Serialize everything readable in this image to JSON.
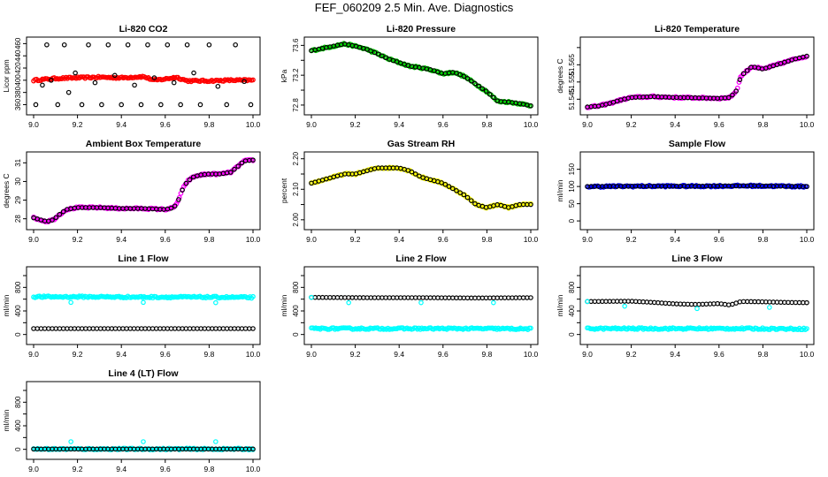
{
  "page": {
    "title": "FEF_060209  2.5 Min. Ave. Diagnostics"
  },
  "colors": {
    "black": "#000000",
    "red": "#ff0000",
    "green": "#00cc00",
    "magenta": "#ff00ff",
    "yellow": "#ffff00",
    "blue": "#0000ff",
    "cyan": "#00ffff"
  },
  "chart_data": [
    {
      "type": "scatter",
      "title": "Li-820 CO2",
      "ylabel": "Licor ppm",
      "xlabel": "",
      "xlim": [
        9.0,
        10.0
      ],
      "ylim": [
        352,
        462
      ],
      "xticks": [
        "9.0",
        "9.2",
        "9.4",
        "9.6",
        "9.8",
        "10.0"
      ],
      "yticks": [
        360,
        380,
        400,
        420,
        440,
        460
      ],
      "series": [
        {
          "name": "red",
          "color": "#ff0000",
          "marker": "dense",
          "x": [
            9.0,
            9.1,
            9.2,
            9.3,
            9.4,
            9.5,
            9.55,
            9.6,
            9.65,
            9.7,
            9.8,
            9.9,
            10.0
          ],
          "values": [
            400,
            403,
            404,
            405,
            404,
            406,
            400,
            402,
            405,
            399,
            399,
            400,
            400
          ]
        },
        {
          "name": "black",
          "color": "#000000",
          "marker": "sparse",
          "x": [
            9.01,
            9.04,
            9.06,
            9.08,
            9.11,
            9.14,
            9.16,
            9.19,
            9.22,
            9.25,
            9.28,
            9.31,
            9.34,
            9.37,
            9.4,
            9.43,
            9.46,
            9.49,
            9.52,
            9.55,
            9.58,
            9.61,
            9.64,
            9.67,
            9.7,
            9.73,
            9.76,
            9.8,
            9.84,
            9.88,
            9.92,
            9.96,
            9.99
          ],
          "values": [
            360,
            392,
            458,
            400,
            360,
            458,
            380,
            412,
            360,
            458,
            396,
            360,
            458,
            408,
            360,
            458,
            392,
            360,
            458,
            404,
            360,
            458,
            396,
            360,
            458,
            412,
            360,
            458,
            390,
            360,
            458,
            398,
            360
          ]
        }
      ]
    },
    {
      "type": "scatter",
      "title": "Li-820 Pressure",
      "ylabel": "kPa",
      "xlabel": "",
      "xlim": [
        9.0,
        10.0
      ],
      "ylim": [
        72.74,
        73.64
      ],
      "xticks": [
        "9.0",
        "9.2",
        "9.4",
        "9.6",
        "9.8",
        "10.0"
      ],
      "yticks": [
        72.8,
        73.0,
        73.2,
        73.4,
        73.6
      ],
      "yticklabels": [
        "72.8",
        "",
        "73.2",
        "",
        "73.6"
      ],
      "series": [
        {
          "name": "green",
          "color": "#00cc00",
          "marker": "dense",
          "x": [
            9.0,
            9.05,
            9.1,
            9.15,
            9.2,
            9.25,
            9.3,
            9.35,
            9.4,
            9.45,
            9.5,
            9.55,
            9.6,
            9.65,
            9.7,
            9.75,
            9.8,
            9.85,
            9.9,
            9.95,
            10.0
          ],
          "values": [
            73.53,
            73.56,
            73.59,
            73.62,
            73.59,
            73.55,
            73.49,
            73.42,
            73.37,
            73.32,
            73.3,
            73.27,
            73.22,
            73.24,
            73.18,
            73.08,
            72.98,
            72.85,
            72.84,
            72.82,
            72.79
          ]
        },
        {
          "name": "black",
          "color": "#000000",
          "marker": "sparse",
          "x": [
            9.0,
            9.05,
            9.1,
            9.15,
            9.2,
            9.25,
            9.3,
            9.35,
            9.4,
            9.45,
            9.5,
            9.55,
            9.6,
            9.65,
            9.7,
            9.75,
            9.8,
            9.85,
            9.9,
            9.95,
            10.0
          ],
          "values": [
            73.53,
            73.56,
            73.59,
            73.62,
            73.59,
            73.55,
            73.49,
            73.42,
            73.37,
            73.32,
            73.3,
            73.27,
            73.22,
            73.24,
            73.18,
            73.08,
            72.98,
            72.85,
            72.84,
            72.82,
            72.79
          ]
        }
      ]
    },
    {
      "type": "scatter",
      "title": "Li-820 Temperature",
      "ylabel": "degrees C",
      "xlabel": "",
      "xlim": [
        9.0,
        10.0
      ],
      "ylim": [
        51.539,
        51.578
      ],
      "xticks": [
        "9.0",
        "9.2",
        "9.4",
        "9.6",
        "9.8",
        "10.0"
      ],
      "yticks": [
        51.545,
        51.555,
        51.565,
        51.575
      ],
      "yticklabels": [
        "51.545",
        "51.555",
        "51.565",
        ""
      ],
      "series": [
        {
          "name": "magenta",
          "color": "#ff00ff",
          "marker": "dense",
          "x": [
            9.0,
            9.05,
            9.1,
            9.15,
            9.2,
            9.3,
            9.4,
            9.5,
            9.6,
            9.65,
            9.68,
            9.7,
            9.75,
            9.8,
            9.85,
            9.9,
            9.95,
            10.0
          ],
          "values": [
            51.5405,
            51.541,
            51.5425,
            51.5445,
            51.546,
            51.5465,
            51.546,
            51.5458,
            51.5455,
            51.546,
            51.55,
            51.5585,
            51.564,
            51.5625,
            51.5645,
            51.5665,
            51.5685,
            51.57
          ]
        },
        {
          "name": "black",
          "color": "#000000",
          "marker": "sparse",
          "x": [
            9.0,
            9.05,
            9.1,
            9.15,
            9.2,
            9.3,
            9.4,
            9.5,
            9.6,
            9.65,
            9.68,
            9.7,
            9.75,
            9.8,
            9.85,
            9.9,
            9.95,
            10.0
          ],
          "values": [
            51.5405,
            51.541,
            51.5425,
            51.5445,
            51.546,
            51.5465,
            51.546,
            51.5458,
            51.5455,
            51.546,
            51.55,
            51.5585,
            51.564,
            51.5625,
            51.5645,
            51.5665,
            51.5685,
            51.57
          ]
        }
      ]
    },
    {
      "type": "scatter",
      "title": "Ambient Box Temperature",
      "ylabel": "degrees C",
      "xlabel": "",
      "xlim": [
        9.0,
        10.0
      ],
      "ylim": [
        27.7,
        31.3
      ],
      "xticks": [
        "9.0",
        "9.2",
        "9.4",
        "9.6",
        "9.8",
        "10.0"
      ],
      "yticks": [
        28,
        29,
        30,
        31
      ],
      "series": [
        {
          "name": "magenta",
          "color": "#ff00ff",
          "marker": "dense",
          "x": [
            9.0,
            9.03,
            9.06,
            9.09,
            9.12,
            9.15,
            9.2,
            9.3,
            9.4,
            9.5,
            9.6,
            9.64,
            9.66,
            9.68,
            9.7,
            9.73,
            9.76,
            9.8,
            9.85,
            9.9,
            9.93,
            9.96,
            10.0
          ],
          "values": [
            28.05,
            27.95,
            27.85,
            27.95,
            28.25,
            28.5,
            28.6,
            28.6,
            28.55,
            28.55,
            28.5,
            28.6,
            29.0,
            29.6,
            30.0,
            30.25,
            30.35,
            30.4,
            30.4,
            30.5,
            30.8,
            31.1,
            31.15
          ]
        },
        {
          "name": "black",
          "color": "#000000",
          "marker": "sparse",
          "x": [
            9.0,
            9.03,
            9.06,
            9.09,
            9.12,
            9.15,
            9.2,
            9.3,
            9.4,
            9.5,
            9.6,
            9.64,
            9.66,
            9.68,
            9.7,
            9.73,
            9.76,
            9.8,
            9.85,
            9.9,
            9.93,
            9.96,
            10.0
          ],
          "values": [
            28.05,
            27.95,
            27.85,
            27.95,
            28.25,
            28.5,
            28.6,
            28.6,
            28.55,
            28.55,
            28.5,
            28.6,
            29.0,
            29.6,
            30.0,
            30.25,
            30.35,
            30.4,
            30.4,
            30.5,
            30.8,
            31.1,
            31.15
          ]
        }
      ]
    },
    {
      "type": "scatter",
      "title": "Gas Stream RH",
      "ylabel": "percent",
      "xlabel": "",
      "xlim": [
        9.0,
        10.0
      ],
      "ylim": [
        1.985,
        2.205
      ],
      "xticks": [
        "9.0",
        "9.2",
        "9.4",
        "9.6",
        "9.8",
        "10.0"
      ],
      "yticks": [
        2.0,
        2.05,
        2.1,
        2.15,
        2.2
      ],
      "yticklabels": [
        "2.00",
        "",
        "2.10",
        "",
        "2.20"
      ],
      "series": [
        {
          "name": "yellow",
          "color": "#ffff00",
          "marker": "dense",
          "x": [
            9.0,
            9.05,
            9.1,
            9.15,
            9.2,
            9.25,
            9.3,
            9.35,
            9.4,
            9.45,
            9.5,
            9.55,
            9.6,
            9.65,
            9.7,
            9.75,
            9.8,
            9.85,
            9.9,
            9.95,
            10.0
          ],
          "values": [
            2.12,
            2.13,
            2.14,
            2.15,
            2.15,
            2.16,
            2.17,
            2.17,
            2.17,
            2.16,
            2.14,
            2.13,
            2.12,
            2.1,
            2.08,
            2.05,
            2.04,
            2.05,
            2.04,
            2.05,
            2.05
          ]
        },
        {
          "name": "black",
          "color": "#000000",
          "marker": "sparse",
          "x": [
            9.0,
            9.05,
            9.1,
            9.15,
            9.2,
            9.25,
            9.3,
            9.35,
            9.4,
            9.45,
            9.5,
            9.55,
            9.6,
            9.65,
            9.7,
            9.75,
            9.8,
            9.85,
            9.9,
            9.95,
            10.0
          ],
          "values": [
            2.12,
            2.13,
            2.14,
            2.15,
            2.15,
            2.16,
            2.17,
            2.17,
            2.17,
            2.16,
            2.14,
            2.13,
            2.12,
            2.1,
            2.08,
            2.05,
            2.04,
            2.05,
            2.04,
            2.05,
            2.05
          ]
        }
      ]
    },
    {
      "type": "scatter",
      "title": "Sample Flow",
      "ylabel": "ml/min",
      "xlabel": "",
      "xlim": [
        9.0,
        10.0
      ],
      "ylim": [
        -10,
        185
      ],
      "xticks": [
        "9.0",
        "9.2",
        "9.4",
        "9.6",
        "9.8",
        "10.0"
      ],
      "yticks": [
        0,
        50,
        100,
        150
      ],
      "series": [
        {
          "name": "blue",
          "color": "#0000ff",
          "marker": "dense",
          "x": [
            9.0,
            9.25,
            9.5,
            9.75,
            10.0
          ],
          "values": [
            100,
            101,
            101,
            102,
            100
          ]
        },
        {
          "name": "black",
          "color": "#000000",
          "marker": "sparse",
          "x": [
            9.0,
            9.25,
            9.5,
            9.75,
            10.0
          ],
          "values": [
            100,
            101,
            101,
            102,
            100
          ]
        }
      ]
    },
    {
      "type": "scatter",
      "title": "Line 1 Flow",
      "ylabel": "ml/min",
      "xlabel": "",
      "xlim": [
        9.0,
        10.0
      ],
      "ylim": [
        -80,
        1060
      ],
      "xticks": [
        "9.0",
        "9.2",
        "9.4",
        "9.6",
        "9.8",
        "10.0"
      ],
      "yticks": [
        0,
        200,
        400,
        600,
        800,
        1000
      ],
      "yticklabels": [
        "0",
        "",
        "400",
        "",
        "800",
        ""
      ],
      "series": [
        {
          "name": "cyan",
          "color": "#00ffff",
          "marker": "dense",
          "x": [
            9.0,
            9.25,
            9.5,
            9.75,
            10.0
          ],
          "values": [
            640,
            640,
            635,
            635,
            630
          ]
        },
        {
          "name": "black",
          "color": "#000000",
          "marker": "sparse",
          "x": [
            9.0,
            9.25,
            9.5,
            9.75,
            10.0
          ],
          "values": [
            100,
            100,
            100,
            100,
            100
          ]
        },
        {
          "name": "cyan-outliers",
          "color": "#00ffff",
          "marker": "sparse",
          "x": [
            9.17,
            9.5,
            9.83
          ],
          "values": [
            545,
            545,
            540
          ]
        }
      ]
    },
    {
      "type": "scatter",
      "title": "Line 2 Flow",
      "ylabel": "ml/min",
      "xlabel": "",
      "xlim": [
        9.0,
        10.0
      ],
      "ylim": [
        -80,
        1060
      ],
      "xticks": [
        "9.0",
        "9.2",
        "9.4",
        "9.6",
        "9.8",
        "10.0"
      ],
      "yticks": [
        0,
        200,
        400,
        600,
        800,
        1000
      ],
      "yticklabels": [
        "0",
        "",
        "400",
        "",
        "800",
        ""
      ],
      "series": [
        {
          "name": "cyan",
          "color": "#00ffff",
          "marker": "dense",
          "x": [
            9.0,
            9.25,
            9.5,
            9.75,
            10.0
          ],
          "values": [
            100,
            100,
            100,
            100,
            95
          ]
        },
        {
          "name": "black",
          "color": "#000000",
          "marker": "sparse",
          "x": [
            9.0,
            9.25,
            9.5,
            9.75,
            10.0
          ],
          "values": [
            630,
            625,
            625,
            620,
            625
          ]
        },
        {
          "name": "cyan-outliers",
          "color": "#00ffff",
          "marker": "sparse",
          "x": [
            9.0,
            9.17,
            9.5,
            9.83
          ],
          "values": [
            630,
            540,
            540,
            540
          ]
        }
      ]
    },
    {
      "type": "scatter",
      "title": "Line 3 Flow",
      "ylabel": "ml/min",
      "xlabel": "",
      "xlim": [
        9.0,
        10.0
      ],
      "ylim": [
        -80,
        1060
      ],
      "xticks": [
        "9.0",
        "9.2",
        "9.4",
        "9.6",
        "9.8",
        "10.0"
      ],
      "yticks": [
        0,
        200,
        400,
        600,
        800,
        1000
      ],
      "yticklabels": [
        "0",
        "",
        "400",
        "",
        "800",
        ""
      ],
      "series": [
        {
          "name": "cyan",
          "color": "#00ffff",
          "marker": "dense",
          "x": [
            9.0,
            9.25,
            9.5,
            9.75,
            10.0
          ],
          "values": [
            100,
            100,
            100,
            100,
            95
          ]
        },
        {
          "name": "black",
          "color": "#000000",
          "marker": "sparse",
          "x": [
            9.0,
            9.2,
            9.3,
            9.4,
            9.5,
            9.6,
            9.65,
            9.7,
            9.8,
            9.9,
            10.0
          ],
          "values": [
            560,
            565,
            545,
            520,
            510,
            525,
            500,
            560,
            555,
            545,
            540
          ]
        },
        {
          "name": "cyan-outliers",
          "color": "#00ffff",
          "marker": "sparse",
          "x": [
            9.0,
            9.17,
            9.5,
            9.83
          ],
          "values": [
            560,
            480,
            440,
            460
          ]
        }
      ]
    },
    {
      "type": "scatter",
      "title": "Line 4 (LT) Flow",
      "ylabel": "ml/min",
      "xlabel": "",
      "xlim": [
        9.0,
        10.0
      ],
      "ylim": [
        -80,
        1060
      ],
      "xticks": [
        "9.0",
        "9.2",
        "9.4",
        "9.6",
        "9.8",
        "10.0"
      ],
      "yticks": [
        0,
        200,
        400,
        600,
        800,
        1000
      ],
      "yticklabels": [
        "0",
        "",
        "400",
        "",
        "800",
        ""
      ],
      "series": [
        {
          "name": "cyan",
          "color": "#00ffff",
          "marker": "dense",
          "x": [
            9.0,
            9.25,
            9.5,
            9.75,
            10.0
          ],
          "values": [
            5,
            5,
            5,
            5,
            5
          ]
        },
        {
          "name": "black",
          "color": "#000000",
          "marker": "sparse",
          "x": [
            9.0,
            9.25,
            9.5,
            9.75,
            10.0
          ],
          "values": [
            5,
            5,
            5,
            5,
            5
          ]
        },
        {
          "name": "cyan-outliers",
          "color": "#00ffff",
          "marker": "sparse",
          "x": [
            9.17,
            9.5,
            9.83
          ],
          "values": [
            130,
            130,
            130
          ]
        }
      ]
    }
  ]
}
